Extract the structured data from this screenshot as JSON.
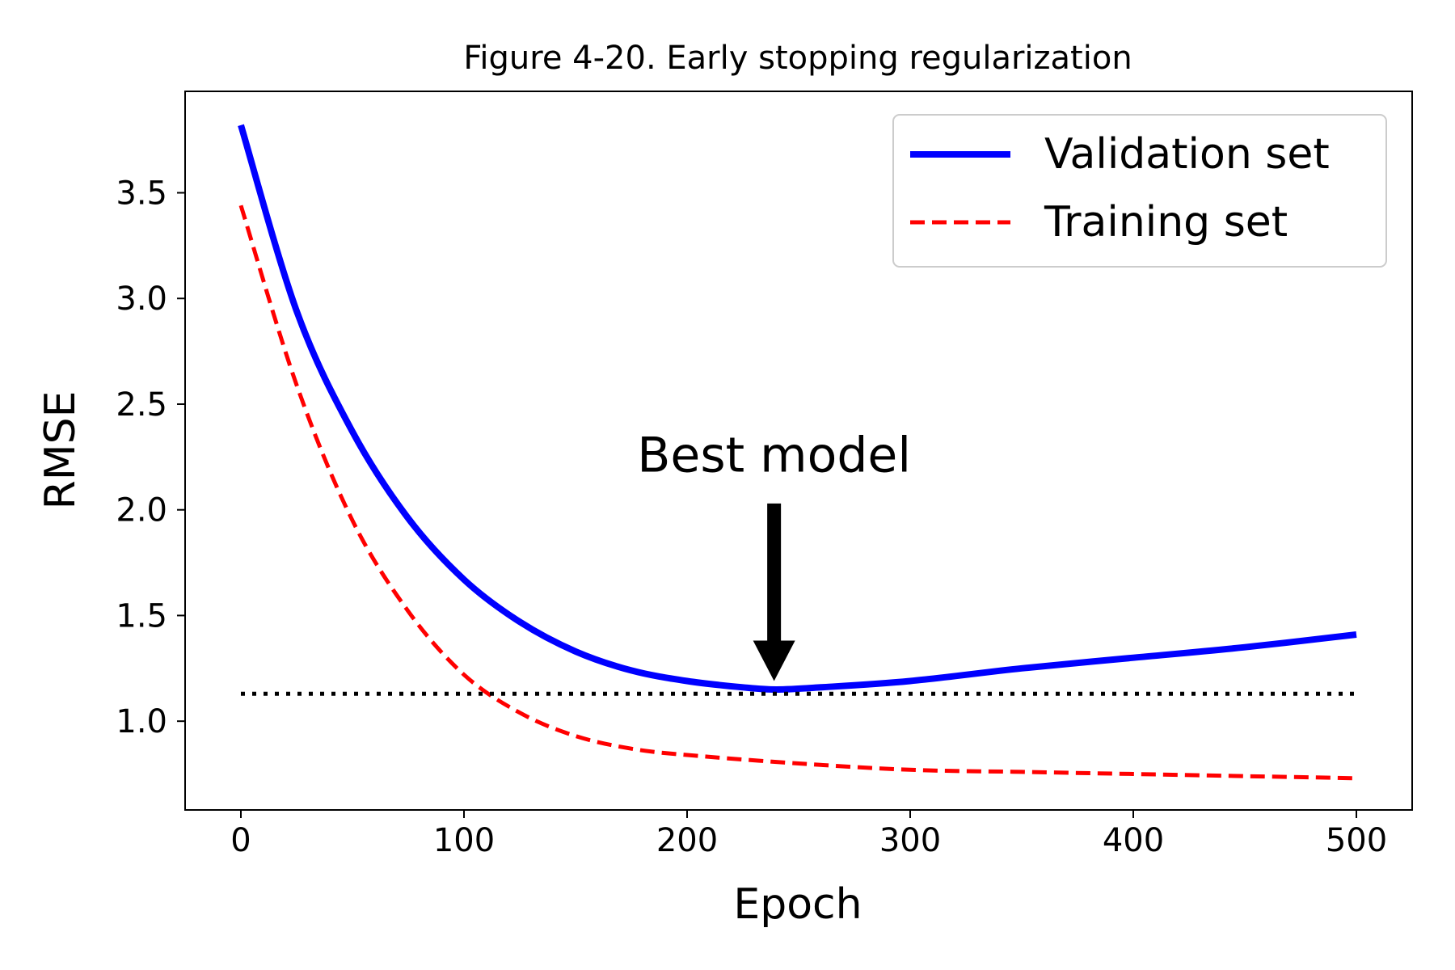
{
  "chart_data": {
    "type": "line",
    "title": "Figure 4-20. Early stopping regularization",
    "xlabel": "Epoch",
    "ylabel": "RMSE",
    "xlim": [
      -25,
      525
    ],
    "ylim": [
      0.58,
      3.98
    ],
    "xticks": [
      0,
      100,
      200,
      300,
      400,
      500
    ],
    "xtick_labels": [
      "0",
      "100",
      "200",
      "300",
      "400",
      "500"
    ],
    "yticks": [
      1.0,
      1.5,
      2.0,
      2.5,
      3.0,
      3.5
    ],
    "ytick_labels": [
      "1.0",
      "1.5",
      "2.0",
      "2.5",
      "3.0",
      "3.5"
    ],
    "grid": false,
    "legend_position": "top-right",
    "series": [
      {
        "name": "Validation set",
        "color": "#0000ff",
        "style": "solid",
        "x": [
          0,
          25,
          50,
          75,
          100,
          125,
          150,
          175,
          200,
          225,
          240,
          260,
          300,
          350,
          400,
          450,
          500
        ],
        "y": [
          3.82,
          2.94,
          2.37,
          1.96,
          1.67,
          1.47,
          1.33,
          1.24,
          1.19,
          1.16,
          1.15,
          1.16,
          1.19,
          1.25,
          1.3,
          1.35,
          1.41
        ]
      },
      {
        "name": "Training set",
        "color": "#ff0000",
        "style": "dashed",
        "x": [
          0,
          25,
          50,
          75,
          100,
          125,
          150,
          175,
          200,
          250,
          300,
          350,
          400,
          450,
          500
        ],
        "y": [
          3.44,
          2.59,
          1.95,
          1.52,
          1.22,
          1.04,
          0.93,
          0.87,
          0.84,
          0.8,
          0.77,
          0.76,
          0.75,
          0.74,
          0.73
        ]
      },
      {
        "name": "",
        "color": "#000000",
        "style": "dotted",
        "x": [
          0,
          500
        ],
        "y": [
          1.13,
          1.13
        ]
      }
    ],
    "annotations": [
      {
        "text": "Best model",
        "arrow_tip": [
          239,
          1.19
        ],
        "arrow_tail": [
          239,
          2.03
        ],
        "text_at": [
          239,
          2.18
        ]
      }
    ]
  }
}
